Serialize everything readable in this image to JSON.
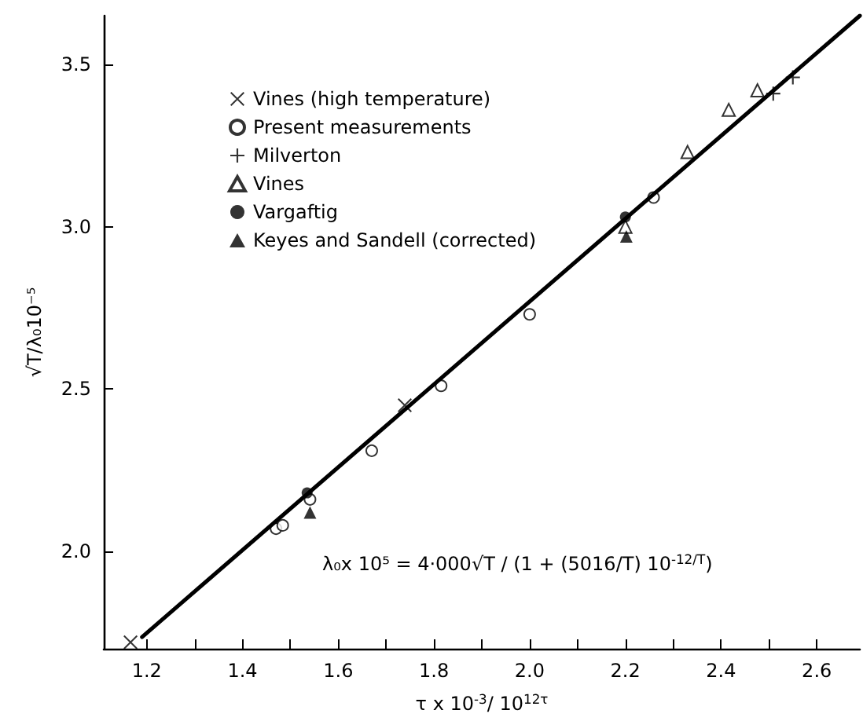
{
  "chart_data": {
    "type": "scatter",
    "xlabel": "τ x 10$^{-3}$/ 10$^{12τ}$",
    "ylabel": "√T/λ₀10⁻⁵",
    "annotations": [
      "λ₀x 10⁵ = 4·000√T / (1 + (5016/T) 10$^{-12/T}$)"
    ],
    "xlim": [
      1.11,
      2.69
    ],
    "ylim": [
      1.7,
      3.65
    ],
    "xticks": [
      {
        "value": 1.2,
        "label": "1.2"
      },
      {
        "value": 1.3,
        "label": null
      },
      {
        "value": 1.4,
        "label": "1.4"
      },
      {
        "value": 1.5,
        "label": null
      },
      {
        "value": 1.6,
        "label": "1.6"
      },
      {
        "value": 1.7,
        "label": null
      },
      {
        "value": 1.8,
        "label": "1.8"
      },
      {
        "value": 1.9,
        "label": null
      },
      {
        "value": 2.0,
        "label": "2.0"
      },
      {
        "value": 2.1,
        "label": null
      },
      {
        "value": 2.2,
        "label": "2.2"
      },
      {
        "value": 2.3,
        "label": null
      },
      {
        "value": 2.4,
        "label": "2.4"
      },
      {
        "value": 2.5,
        "label": null
      },
      {
        "value": 2.6,
        "label": "2.6"
      }
    ],
    "yticks": [
      {
        "value": 2.0,
        "label": "2.0"
      },
      {
        "value": 2.5,
        "label": "2.5"
      },
      {
        "value": 3.0,
        "label": "3.0"
      },
      {
        "value": 3.5,
        "label": "3.5"
      }
    ],
    "grid": false,
    "legend": "top left",
    "series": [
      {
        "name": "Vines (high temperature)",
        "marker": "x",
        "color": "#000000",
        "x": [
          1.166,
          1.739
        ],
        "values": [
          1.72,
          2.45
        ]
      },
      {
        "name": "Present measurements",
        "marker": "circle-open",
        "color": "#000000",
        "x": [
          1.47,
          1.484,
          1.541,
          1.67,
          1.815,
          2.0,
          2.259
        ],
        "values": [
          2.07,
          2.08,
          2.16,
          2.31,
          2.51,
          2.73,
          3.09
        ]
      },
      {
        "name": "Milverton",
        "marker": "plus",
        "color": "#000000",
        "x": [
          2.509,
          2.55
        ],
        "values": [
          3.41,
          3.46
        ]
      },
      {
        "name": "Vines",
        "marker": "triangle-open",
        "color": "#000000",
        "x": [
          2.2,
          2.33,
          2.416,
          2.476
        ],
        "values": [
          3.0,
          3.23,
          3.36,
          3.42
        ]
      },
      {
        "name": "Vargaftig",
        "marker": "circle",
        "color": "#000000",
        "x": [
          1.535,
          2.2
        ],
        "values": [
          2.18,
          3.03
        ]
      },
      {
        "name": "Keyes and Sandell (corrected)",
        "marker": "triangle",
        "color": "#000000",
        "x": [
          1.541,
          2.202
        ],
        "values": [
          2.12,
          2.97
        ]
      },
      {
        "type": "line",
        "marker": "none",
        "line_style": "solid",
        "color": "#000000",
        "x": [
          1.19,
          2.69
        ],
        "values": [
          1.736,
          3.65
        ]
      }
    ]
  }
}
